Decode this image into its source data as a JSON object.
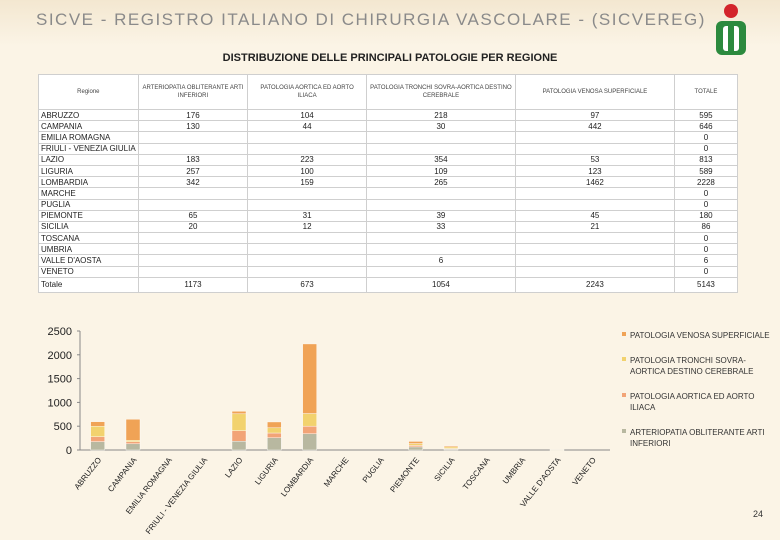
{
  "header": {
    "title": "SICVE - REGISTRO ITALIANO DI CHIRURGIA VASCOLARE - (SICVEREG)"
  },
  "subtitle": "DISTRIBUZIONE DELLE PRINCIPALI PATOLOGIE PER REGIONE",
  "table": {
    "headers": [
      "Regione",
      "ARTERIOPATIA OBLITERANTE ARTI INFERIORI",
      "PATOLOGIA AORTICA ED AORTO ILIACA",
      "PATOLOGIA TRONCHI SOVRA-AORTICA DESTINO CEREBRALE",
      "PATOLOGIA VENOSA SUPERFICIALE",
      "TOTALE"
    ],
    "rows": [
      [
        "ABRUZZO",
        "176",
        "104",
        "218",
        "97",
        "595"
      ],
      [
        "CAMPANIA",
        "130",
        "44",
        "30",
        "442",
        "646"
      ],
      [
        "EMILIA ROMAGNA",
        "",
        "",
        "",
        "",
        "0"
      ],
      [
        "FRIULI - VENEZIA GIULIA",
        "",
        "",
        "",
        "",
        "0"
      ],
      [
        "LAZIO",
        "183",
        "223",
        "354",
        "53",
        "813"
      ],
      [
        "LIGURIA",
        "257",
        "100",
        "109",
        "123",
        "589"
      ],
      [
        "LOMBARDIA",
        "342",
        "159",
        "265",
        "1462",
        "2228"
      ],
      [
        "MARCHE",
        "",
        "",
        "",
        "",
        "0"
      ],
      [
        "PUGLIA",
        "",
        "",
        "",
        "",
        "0"
      ],
      [
        "PIEMONTE",
        "65",
        "31",
        "39",
        "45",
        "180"
      ],
      [
        "SICILIA",
        "20",
        "12",
        "33",
        "21",
        "86"
      ],
      [
        "TOSCANA",
        "",
        "",
        "",
        "",
        "0"
      ],
      [
        "UMBRIA",
        "",
        "",
        "",
        "",
        "0"
      ],
      [
        "VALLE D'AOSTA",
        "",
        "",
        "6",
        "",
        "6"
      ],
      [
        "VENETO",
        "",
        "",
        "",
        "",
        "0"
      ]
    ],
    "total": [
      "Totale",
      "1173",
      "673",
      "1054",
      "2243",
      "5143"
    ]
  },
  "chart_data": {
    "type": "bar",
    "stacked": true,
    "categories": [
      "ABRUZZO",
      "CAMPANIA",
      "EMILIA ROMAGNA",
      "FRIULI - VENEZIA GIULIA",
      "LAZIO",
      "LIGURIA",
      "LOMBARDIA",
      "MARCHE",
      "PUGLIA",
      "PIEMONTE",
      "SICILIA",
      "TOSCANA",
      "UMBRIA",
      "VALLE D'AOSTA",
      "VENETO"
    ],
    "series": [
      {
        "name": "ARTERIOPATIA OBLITERANTE ARTI INFERIORI",
        "color": "#b8b8a0",
        "values": [
          176,
          130,
          0,
          0,
          183,
          257,
          342,
          0,
          0,
          65,
          20,
          0,
          0,
          0,
          0
        ]
      },
      {
        "name": "PATOLOGIA AORTICA ED AORTO ILIACA",
        "color": "#f2a477",
        "values": [
          104,
          44,
          0,
          0,
          223,
          100,
          159,
          0,
          0,
          31,
          12,
          0,
          0,
          0,
          0
        ]
      },
      {
        "name": "PATOLOGIA TRONCHI SOVRA-AORTICA DESTINO CEREBRALE",
        "color": "#f2d26e",
        "values": [
          218,
          30,
          0,
          0,
          354,
          109,
          265,
          0,
          0,
          39,
          33,
          0,
          0,
          6,
          0
        ]
      },
      {
        "name": "PATOLOGIA VENOSA SUPERFICIALE",
        "color": "#f0a356",
        "values": [
          97,
          442,
          0,
          0,
          53,
          123,
          1462,
          0,
          0,
          45,
          21,
          0,
          0,
          0,
          0
        ]
      }
    ],
    "yticks": [
      0,
      500,
      1000,
      1500,
      2000,
      2500
    ],
    "ylim": [
      0,
      2500
    ],
    "legend": [
      "PATOLOGIA VENOSA SUPERFICIALE",
      "PATOLOGIA TRONCHI SOVRA-AORTICA DESTINO CEREBRALE",
      "PATOLOGIA AORTICA ED AORTO ILIACA",
      "ARTERIOPATIA OBLITERANTE ARTI INFERIORI"
    ],
    "legend_colors": [
      "#f0a356",
      "#f2d26e",
      "#f2a477",
      "#b8b8a0"
    ]
  },
  "page_number": "24"
}
